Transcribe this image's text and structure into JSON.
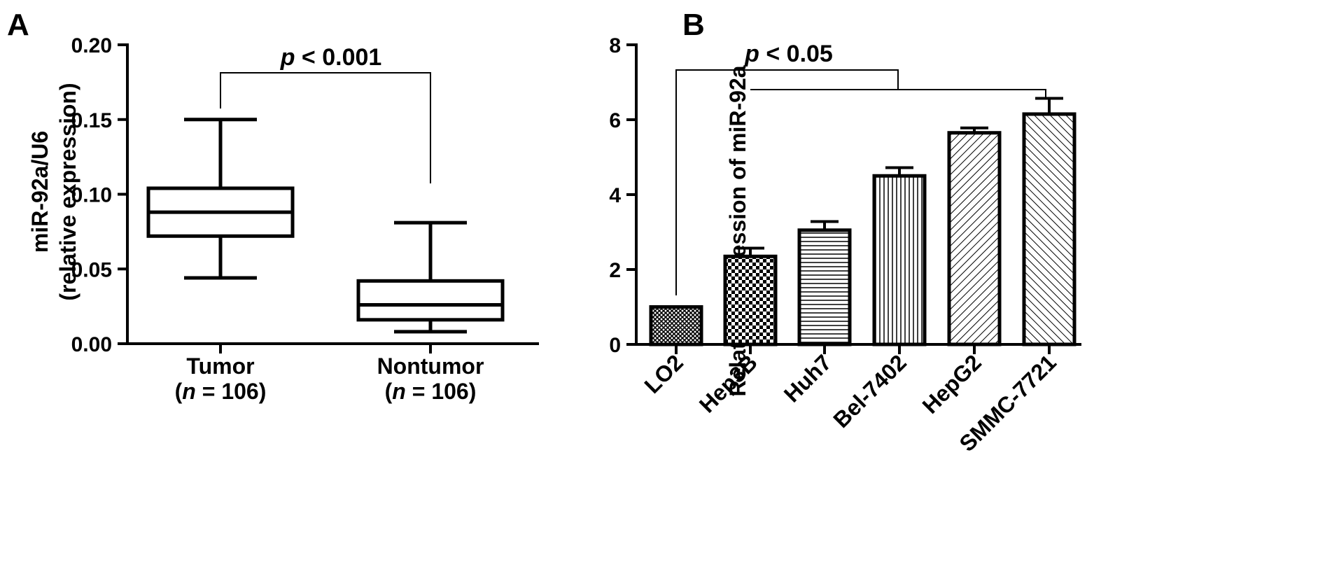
{
  "panels": {
    "a_letter": "A",
    "b_letter": "B"
  },
  "chart_data": [
    {
      "type": "box",
      "panel": "A",
      "ylabel_line1": "miR-92a/U6",
      "ylabel_line2": "(relative expression)",
      "ylim": [
        0,
        0.2
      ],
      "yticks": [
        "0.00",
        "0.05",
        "0.10",
        "0.15",
        "0.20"
      ],
      "ytick_values": [
        0,
        0.05,
        0.1,
        0.15,
        0.2
      ],
      "grid": false,
      "groups": [
        {
          "label": "Tumor",
          "n_label": {
            "open": "(",
            "n": "n",
            "eq": " = 106)"
          },
          "whisker_low": 0.044,
          "q1": 0.072,
          "median": 0.088,
          "q3": 0.104,
          "whisker_high": 0.15
        },
        {
          "label": "Nontumor",
          "n_label": {
            "open": "(",
            "n": "n",
            "eq": " = 106)"
          },
          "whisker_low": 0.008,
          "q1": 0.016,
          "median": 0.026,
          "q3": 0.042,
          "whisker_high": 0.081
        }
      ],
      "significance": {
        "p": "p",
        "text": " < 0.001"
      }
    },
    {
      "type": "bar",
      "panel": "B",
      "ylabel": "Relative expression of miR-92a",
      "ylim": [
        0,
        8
      ],
      "yticks": [
        "0",
        "2",
        "4",
        "6",
        "8"
      ],
      "ytick_values": [
        0,
        2,
        4,
        6,
        8
      ],
      "grid": false,
      "categories": [
        "LO2",
        "Hep3B",
        "Huh7",
        "Bel-7402",
        "HepG2",
        "SMMC-7721"
      ],
      "values": [
        1.0,
        2.35,
        3.05,
        4.5,
        5.65,
        6.15
      ],
      "errors": [
        0.0,
        0.22,
        0.23,
        0.22,
        0.13,
        0.42
      ],
      "patterns": [
        "fine-crosshatch",
        "checker",
        "horizontal",
        "vertical",
        "diagonal-ne",
        "diagonal-nw"
      ],
      "significance": {
        "p": "p",
        "text": " < 0.05"
      }
    }
  ]
}
